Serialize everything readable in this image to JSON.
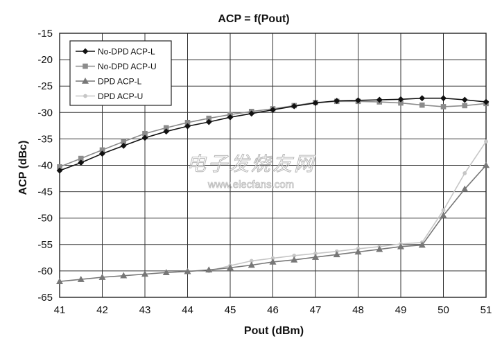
{
  "chart_data": {
    "type": "line",
    "title": "ACP = f(Pout)",
    "xlabel": "Pout (dBm)",
    "ylabel": "ACP (dBc)",
    "xlim": [
      41,
      51
    ],
    "ylim": [
      -65,
      -15
    ],
    "x_ticks": [
      41,
      42,
      43,
      44,
      45,
      46,
      47,
      48,
      49,
      50,
      51
    ],
    "y_ticks": [
      -15,
      -20,
      -25,
      -30,
      -35,
      -40,
      -45,
      -50,
      -55,
      -60,
      -65
    ],
    "grid": true,
    "legend_position": "top-left",
    "x": [
      41,
      41.5,
      42,
      42.5,
      43,
      43.5,
      44,
      44.5,
      45,
      45.5,
      46,
      46.5,
      47,
      47.5,
      48,
      48.5,
      49,
      49.5,
      50,
      50.5,
      51
    ],
    "series": [
      {
        "name": "No-DPD ACP-L",
        "marker": "diamond",
        "color": "#111111",
        "values": [
          -41,
          -39.5,
          -37.8,
          -36.3,
          -34.8,
          -33.6,
          -32.6,
          -31.8,
          -30.9,
          -30.2,
          -29.5,
          -28.8,
          -28.2,
          -27.8,
          -27.7,
          -27.6,
          -27.5,
          -27.3,
          -27.3,
          -27.6,
          -28
        ]
      },
      {
        "name": "No-DPD ACP-U",
        "marker": "square",
        "color": "#8c8c8c",
        "values": [
          -40.3,
          -38.7,
          -37.1,
          -35.5,
          -34,
          -32.9,
          -31.9,
          -31.1,
          -30.4,
          -29.8,
          -29.3,
          -28.7,
          -28.1,
          -27.9,
          -27.9,
          -28,
          -28.2,
          -28.6,
          -28.9,
          -28.7,
          -28.3
        ]
      },
      {
        "name": "DPD ACP-L",
        "marker": "triangle",
        "color": "#777777",
        "values": [
          -62,
          -61.6,
          -61.2,
          -60.9,
          -60.6,
          -60.3,
          -60.1,
          -59.8,
          -59.4,
          -58.9,
          -58.3,
          -57.9,
          -57.4,
          -56.9,
          -56.4,
          -55.9,
          -55.4,
          -55.1,
          -49.5,
          -44.5,
          -40
        ]
      },
      {
        "name": "DPD ACP-U",
        "marker": "circle",
        "color": "#c6c6c6",
        "values": [
          null,
          null,
          null,
          null,
          null,
          null,
          null,
          -60,
          -59,
          -58.1,
          -57.6,
          -57.1,
          -56.7,
          -56.3,
          -55.8,
          -55.4,
          -54.9,
          -54.6,
          -48.5,
          -41.5,
          -35.5
        ]
      }
    ]
  },
  "watermark": {
    "chinese_text": "电子发烧友网",
    "url": "www.elecfans.com"
  }
}
